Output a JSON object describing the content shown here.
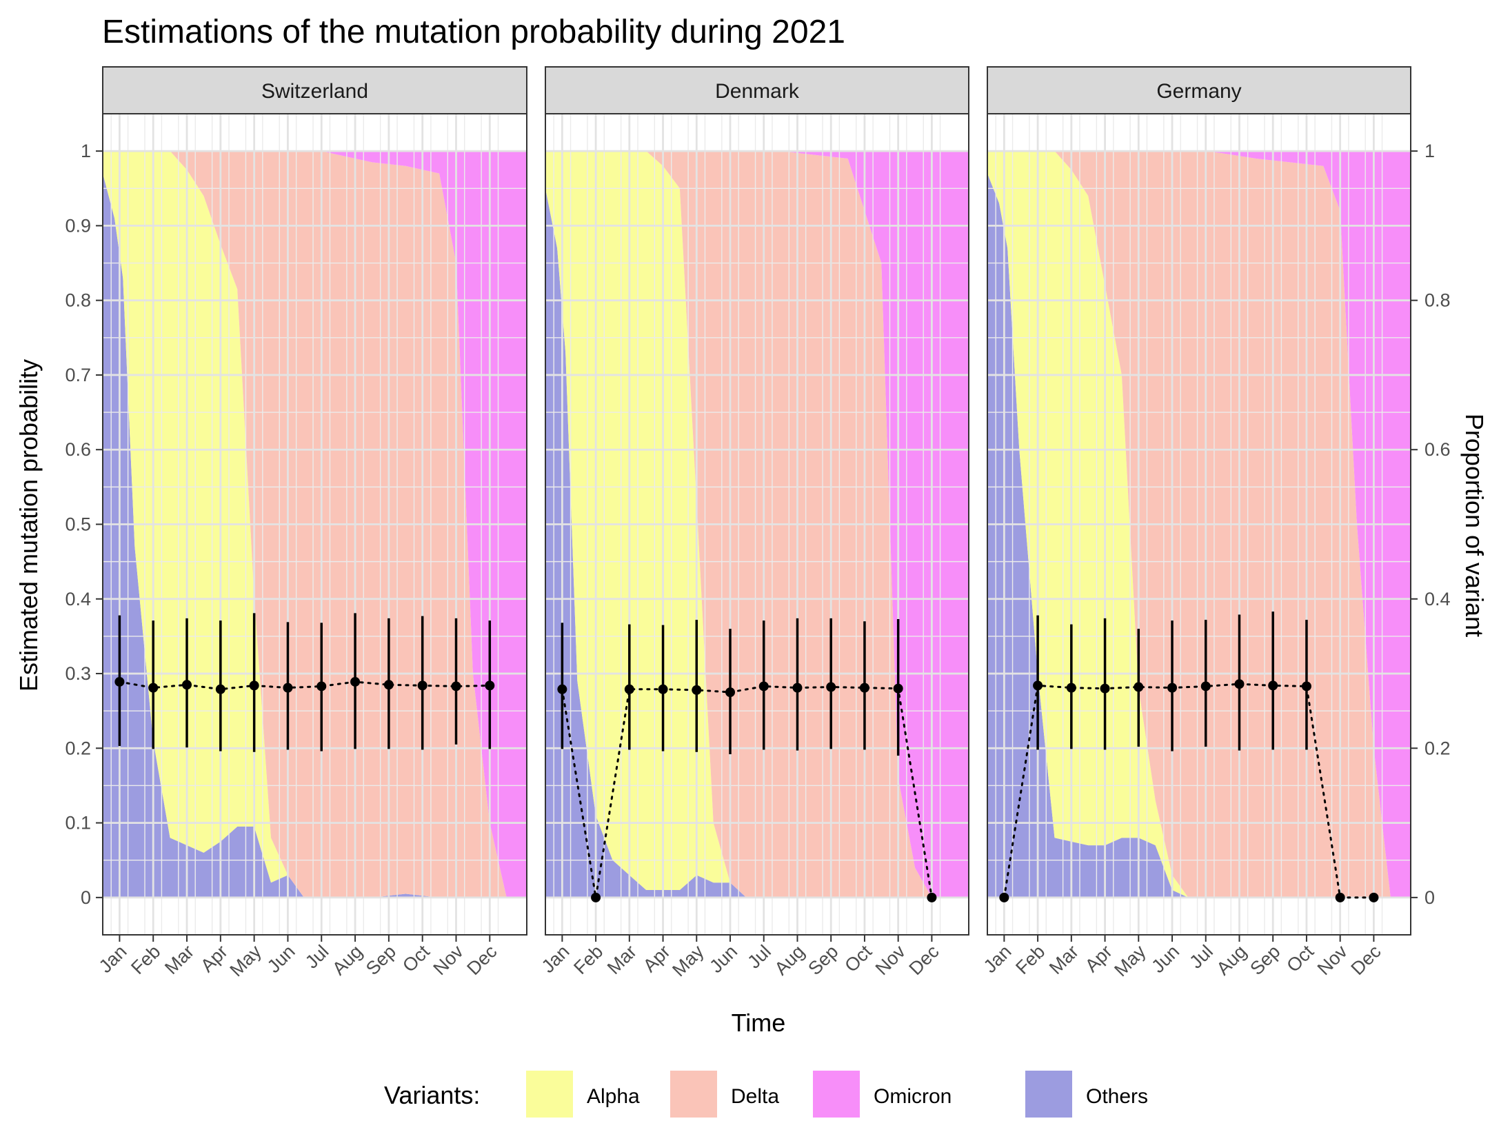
{
  "chart_data": {
    "type": "area",
    "title": "Estimations of the mutation probability during 2021",
    "xlabel": "Time",
    "ylabel": "Estimated mutation probability",
    "ylabel_right": "Proportion of variant",
    "ylim": [
      -0.05,
      1.05
    ],
    "y_ticks": [
      "0",
      "0.1",
      "0.2",
      "0.3",
      "0.4",
      "0.5",
      "0.6",
      "0.7",
      "0.8",
      "0.9",
      "1"
    ],
    "y_right_ticks": [
      "0",
      "0.2",
      "0.4",
      "0.6",
      "0.8",
      "1"
    ],
    "months": [
      "Jan",
      "Feb",
      "Mar",
      "Apr",
      "May",
      "Jun",
      "Jul",
      "Aug",
      "Sep",
      "Oct",
      "Nov",
      "Dec"
    ],
    "legend": {
      "title": "Variants:",
      "position": "bottom",
      "items": [
        {
          "label": "Alpha",
          "color": "#FAFD9A"
        },
        {
          "label": "Delta",
          "color": "#FAC4B8"
        },
        {
          "label": "Omicron",
          "color": "#F78EF9"
        },
        {
          "label": "Others",
          "color": "#9C9CE0"
        }
      ]
    },
    "colors": {
      "Alpha": "#FAFD9A",
      "Delta": "#FAC4B8",
      "Omicron": "#F78EF9",
      "Others": "#9C9CE0"
    },
    "panels": [
      {
        "name": "Switzerland",
        "proportions": {
          "t": [
            0.0,
            0.35,
            0.6,
            0.95,
            1.5,
            2.0,
            2.5,
            3.0,
            3.5,
            4.0,
            4.5,
            5.0,
            5.5,
            5.98,
            6.02,
            6.5,
            7.0,
            8.0,
            9.0,
            10.0,
            10.5,
            11.0,
            11.5,
            12.0,
            12.6
          ],
          "alpha": [
            0.03,
            0.09,
            0.17,
            0.53,
            0.79,
            0.92,
            0.905,
            0.88,
            0.8,
            0.72,
            0.31,
            0.06,
            0.0,
            0.0,
            0.0,
            0.0,
            0.0,
            0.0,
            0.0,
            0.0,
            0.0,
            0.0,
            0.0,
            0.0,
            0.0
          ],
          "delta": [
            0.0,
            0.0,
            0.0,
            0.0,
            0.0,
            0.0,
            0.025,
            0.06,
            0.125,
            0.185,
            0.595,
            0.92,
            0.97,
            1.0,
            1.0,
            1.0,
            0.995,
            0.985,
            0.975,
            0.97,
            0.85,
            0.3,
            0.1,
            0.0,
            0.0
          ],
          "omicron": [
            0.0,
            0.0,
            0.0,
            0.0,
            0.0,
            0.0,
            0.0,
            0.0,
            0.0,
            0.0,
            0.0,
            0.0,
            0.0,
            0.0,
            0.0,
            0.0,
            0.005,
            0.015,
            0.02,
            0.03,
            0.15,
            0.7,
            0.9,
            1.0,
            1.0
          ]
        },
        "estimates": [
          {
            "month": "Jan",
            "est": 0.289,
            "lo": 0.203,
            "hi": 0.378
          },
          {
            "month": "Feb",
            "est": 0.281,
            "lo": 0.199,
            "hi": 0.371
          },
          {
            "month": "Mar",
            "est": 0.285,
            "lo": 0.201,
            "hi": 0.374
          },
          {
            "month": "Apr",
            "est": 0.279,
            "lo": 0.196,
            "hi": 0.371
          },
          {
            "month": "May",
            "est": 0.284,
            "lo": 0.195,
            "hi": 0.381
          },
          {
            "month": "Jun",
            "est": 0.281,
            "lo": 0.198,
            "hi": 0.369
          },
          {
            "month": "Jul",
            "est": 0.283,
            "lo": 0.196,
            "hi": 0.368
          },
          {
            "month": "Aug",
            "est": 0.289,
            "lo": 0.199,
            "hi": 0.381
          },
          {
            "month": "Sep",
            "est": 0.285,
            "lo": 0.199,
            "hi": 0.374
          },
          {
            "month": "Oct",
            "est": 0.284,
            "lo": 0.198,
            "hi": 0.377
          },
          {
            "month": "Nov",
            "est": 0.283,
            "lo": 0.205,
            "hi": 0.374
          },
          {
            "month": "Dec",
            "est": 0.284,
            "lo": 0.199,
            "hi": 0.371
          }
        ]
      },
      {
        "name": "Denmark",
        "proportions": {
          "t": [
            0.0,
            0.35,
            0.6,
            0.95,
            1.5,
            2.0,
            2.5,
            3.0,
            3.5,
            4.0,
            4.5,
            5.0,
            5.5,
            5.98,
            6.02,
            6.5,
            7.0,
            8.0,
            9.0,
            10.0,
            10.5,
            11.0,
            11.5,
            12.0,
            12.6
          ],
          "alpha": [
            0.05,
            0.13,
            0.27,
            0.71,
            0.89,
            0.95,
            0.97,
            0.99,
            0.97,
            0.94,
            0.5,
            0.08,
            0.0,
            0.0,
            0.0,
            0.0,
            0.0,
            0.0,
            0.0,
            0.0,
            0.0,
            0.0,
            0.0,
            0.0,
            0.0
          ],
          "delta": [
            0.0,
            0.0,
            0.0,
            0.0,
            0.0,
            0.0,
            0.0,
            0.0,
            0.02,
            0.05,
            0.47,
            0.9,
            0.98,
            1.0,
            1.0,
            1.0,
            1.0,
            0.995,
            0.99,
            0.85,
            0.16,
            0.04,
            0.0,
            0.0,
            0.0
          ],
          "omicron": [
            0.0,
            0.0,
            0.0,
            0.0,
            0.0,
            0.0,
            0.0,
            0.0,
            0.0,
            0.0,
            0.0,
            0.0,
            0.0,
            0.0,
            0.0,
            0.0,
            0.0,
            0.005,
            0.01,
            0.15,
            0.84,
            0.96,
            1.0,
            1.0,
            1.0
          ]
        },
        "estimates": [
          {
            "month": "Jan",
            "est": 0.279,
            "lo": 0.199,
            "hi": 0.368
          },
          {
            "month": "Feb",
            "est": 0.0,
            "lo": null,
            "hi": null
          },
          {
            "month": "Mar",
            "est": 0.279,
            "lo": 0.198,
            "hi": 0.366
          },
          {
            "month": "Apr",
            "est": 0.279,
            "lo": 0.196,
            "hi": 0.365
          },
          {
            "month": "May",
            "est": 0.278,
            "lo": 0.195,
            "hi": 0.372
          },
          {
            "month": "Jun",
            "est": 0.275,
            "lo": 0.192,
            "hi": 0.36
          },
          {
            "month": "Jul",
            "est": 0.283,
            "lo": 0.198,
            "hi": 0.371
          },
          {
            "month": "Aug",
            "est": 0.281,
            "lo": 0.197,
            "hi": 0.374
          },
          {
            "month": "Sep",
            "est": 0.282,
            "lo": 0.199,
            "hi": 0.374
          },
          {
            "month": "Oct",
            "est": 0.281,
            "lo": 0.198,
            "hi": 0.37
          },
          {
            "month": "Nov",
            "est": 0.28,
            "lo": 0.19,
            "hi": 0.373
          },
          {
            "month": "Dec",
            "est": 0.0,
            "lo": null,
            "hi": null
          }
        ]
      },
      {
        "name": "Germany",
        "proportions": {
          "t": [
            0.0,
            0.35,
            0.6,
            0.95,
            1.5,
            2.0,
            2.5,
            3.0,
            3.5,
            4.0,
            4.5,
            5.0,
            5.5,
            5.98,
            6.02,
            6.5,
            7.0,
            8.0,
            9.0,
            10.0,
            10.5,
            11.0,
            11.5,
            12.0,
            12.6
          ],
          "alpha": [
            0.03,
            0.07,
            0.13,
            0.4,
            0.7,
            0.92,
            0.9,
            0.87,
            0.75,
            0.62,
            0.2,
            0.06,
            0.02,
            0.0,
            0.0,
            0.0,
            0.0,
            0.0,
            0.0,
            0.0,
            0.0,
            0.0,
            0.0,
            0.0,
            0.0
          ],
          "delta": [
            0.0,
            0.0,
            0.0,
            0.0,
            0.0,
            0.0,
            0.025,
            0.06,
            0.18,
            0.3,
            0.72,
            0.87,
            0.97,
            1.0,
            1.0,
            1.0,
            0.997,
            0.99,
            0.985,
            0.98,
            0.92,
            0.5,
            0.2,
            0.0,
            0.0
          ],
          "omicron": [
            0.0,
            0.0,
            0.0,
            0.0,
            0.0,
            0.0,
            0.0,
            0.0,
            0.0,
            0.0,
            0.0,
            0.0,
            0.0,
            0.0,
            0.0,
            0.0,
            0.003,
            0.01,
            0.015,
            0.02,
            0.08,
            0.5,
            0.8,
            1.0,
            1.0
          ]
        },
        "estimates": [
          {
            "month": "Jan",
            "est": 0.0,
            "lo": null,
            "hi": null
          },
          {
            "month": "Feb",
            "est": 0.284,
            "lo": 0.198,
            "hi": 0.378
          },
          {
            "month": "Mar",
            "est": 0.281,
            "lo": 0.199,
            "hi": 0.366
          },
          {
            "month": "Apr",
            "est": 0.28,
            "lo": 0.198,
            "hi": 0.374
          },
          {
            "month": "May",
            "est": 0.282,
            "lo": 0.202,
            "hi": 0.36
          },
          {
            "month": "Jun",
            "est": 0.281,
            "lo": 0.196,
            "hi": 0.371
          },
          {
            "month": "Jul",
            "est": 0.283,
            "lo": 0.202,
            "hi": 0.372
          },
          {
            "month": "Aug",
            "est": 0.286,
            "lo": 0.197,
            "hi": 0.379
          },
          {
            "month": "Sep",
            "est": 0.284,
            "lo": 0.198,
            "hi": 0.383
          },
          {
            "month": "Oct",
            "est": 0.283,
            "lo": 0.198,
            "hi": 0.372
          },
          {
            "month": "Nov",
            "est": 0.0,
            "lo": null,
            "hi": null
          },
          {
            "month": "Dec",
            "est": 0.0,
            "lo": null,
            "hi": null
          }
        ]
      }
    ]
  }
}
